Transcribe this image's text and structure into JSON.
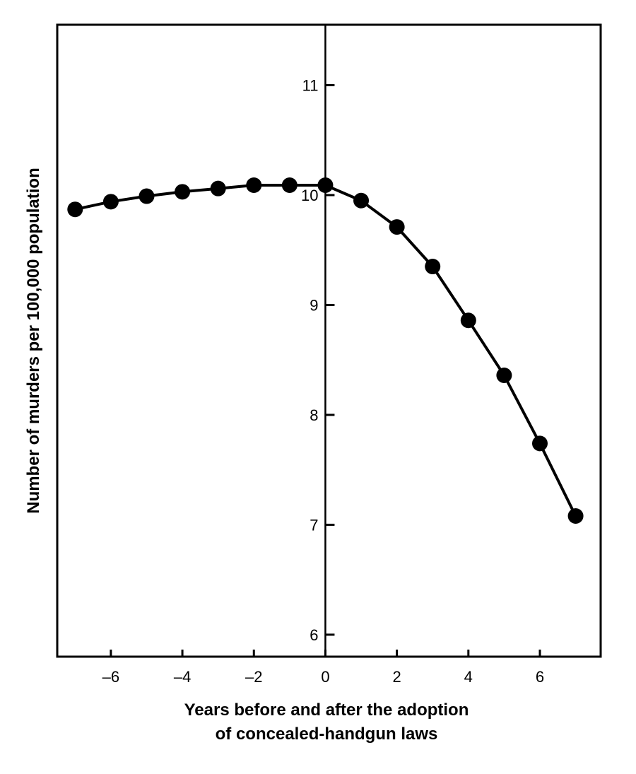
{
  "chart_data": {
    "type": "line",
    "title": "",
    "xlabel_lines": [
      "Years before and after the adoption",
      "of concealed-handgun laws"
    ],
    "ylabel": "Number of murders per 100,000 population",
    "xlim": [
      -7.5,
      7.7
    ],
    "ylim": [
      5.8,
      11.55
    ],
    "x_ticks": [
      -6,
      -4,
      -2,
      0,
      2,
      4,
      6
    ],
    "x_tick_labels": [
      "–6",
      "–4",
      "–2",
      "0",
      "2",
      "4",
      "6"
    ],
    "y_ticks": [
      6,
      7,
      8,
      9,
      10,
      11
    ],
    "y_tick_labels": [
      "6",
      "7",
      "8",
      "9",
      "10",
      "11"
    ],
    "grid": false,
    "series": [
      {
        "x": [
          -7,
          -6,
          -5,
          -4,
          -3,
          -2,
          -1,
          0,
          1,
          2,
          3,
          4,
          5,
          6,
          7
        ],
        "y": [
          9.87,
          9.94,
          9.99,
          10.03,
          10.06,
          10.09,
          10.09,
          10.09,
          9.95,
          9.71,
          9.35,
          8.86,
          8.36,
          7.74,
          7.08
        ]
      }
    ]
  }
}
